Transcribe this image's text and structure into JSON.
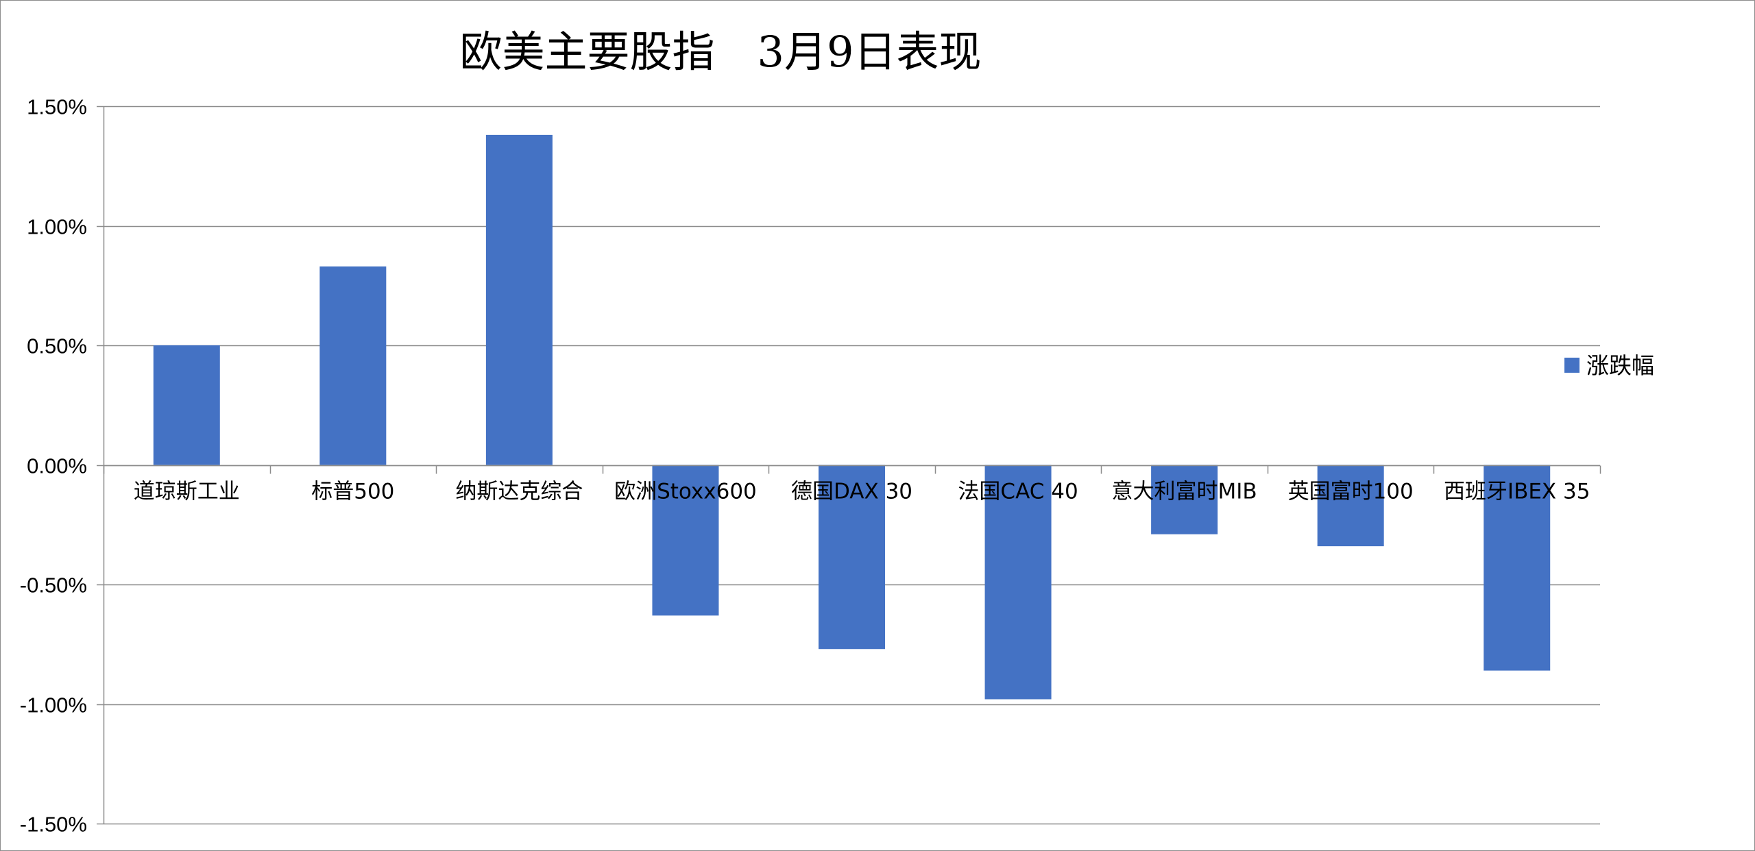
{
  "chart_data": {
    "type": "bar",
    "title": "欧美主要股指　3月9日表现",
    "categories": [
      "道琼斯工业",
      "标普500",
      "纳斯达克综合",
      "欧洲Stoxx600",
      "德国DAX 30",
      "法国CAC 40",
      "意大利富时MIB",
      "英国富时100",
      "西班牙IBEX 35"
    ],
    "series": [
      {
        "name": "涨跌幅",
        "values": [
          0.5,
          0.83,
          1.38,
          -0.63,
          -0.77,
          -0.98,
          -0.29,
          -0.34,
          -0.86
        ],
        "color": "#4472C4"
      }
    ],
    "value_unit": "percent",
    "ylim": [
      -1.5,
      1.5
    ],
    "y_ticks": [
      1.5,
      1.0,
      0.5,
      0.0,
      -0.5,
      -1.0,
      -1.5
    ],
    "y_tick_labels": [
      "1.50%",
      "1.00%",
      "0.50%",
      "0.00%",
      "-0.50%",
      "-1.00%",
      "-1.50%"
    ],
    "grid": true,
    "legend_position": "right",
    "xlabel": "",
    "ylabel": ""
  }
}
